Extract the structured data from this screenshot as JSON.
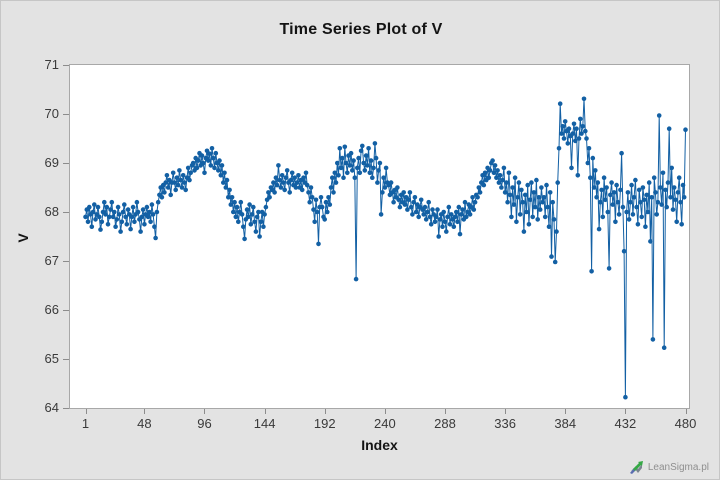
{
  "window": {
    "background": "#e3e3e3",
    "border": "#c6c6c6"
  },
  "watermark": {
    "label": "LeanSigma.pl",
    "text_color": "#8f8f8f",
    "arrow_green": "#35a845",
    "arrow_blue": "#5a6db0",
    "arrow_gray": "#7a8490"
  },
  "chart_data": {
    "type": "line",
    "title": "Time Series Plot of V",
    "xlabel": "Index",
    "ylabel": "V",
    "marker": "circle",
    "grid": false,
    "legend": "none",
    "accent_color": "#1360a4",
    "plot_background": "#ffffff",
    "plot_border_color": "#a8a8a8",
    "xlim": [
      1,
      480
    ],
    "ylim": [
      64,
      71
    ],
    "x_ticks": [
      1,
      48,
      96,
      144,
      192,
      240,
      288,
      336,
      384,
      432,
      480
    ],
    "y_ticks": [
      71,
      70,
      69,
      68,
      67,
      66,
      65,
      64
    ],
    "series": [
      {
        "name": "V",
        "x_start": 1,
        "x_step": 1,
        "values": [
          67.9,
          68.05,
          67.8,
          68.1,
          67.95,
          67.7,
          68.0,
          68.15,
          67.85,
          67.95,
          68.1,
          67.9,
          67.64,
          67.8,
          68.0,
          68.2,
          67.95,
          68.1,
          67.75,
          67.9,
          68.05,
          68.2,
          67.9,
          68.0,
          67.7,
          67.85,
          68.1,
          67.95,
          67.6,
          67.8,
          68.0,
          68.15,
          67.9,
          67.75,
          68.05,
          67.95,
          67.65,
          67.9,
          68.1,
          67.8,
          67.95,
          68.2,
          68.0,
          67.85,
          67.6,
          67.9,
          68.05,
          67.75,
          67.95,
          68.1,
          67.9,
          68.0,
          67.8,
          68.15,
          67.95,
          67.7,
          67.47,
          68.0,
          68.2,
          68.35,
          68.5,
          68.3,
          68.55,
          68.4,
          68.6,
          68.75,
          68.5,
          68.65,
          68.35,
          68.6,
          68.8,
          68.6,
          68.45,
          68.7,
          68.55,
          68.85,
          68.65,
          68.5,
          68.75,
          68.6,
          68.45,
          68.7,
          68.9,
          68.65,
          68.8,
          68.95,
          69.0,
          68.85,
          69.1,
          68.9,
          69.05,
          69.2,
          68.95,
          69.15,
          69.0,
          68.8,
          69.1,
          69.25,
          69.05,
          69.19,
          68.95,
          69.3,
          69.1,
          68.9,
          69.2,
          69.0,
          68.85,
          69.05,
          68.75,
          68.95,
          68.6,
          68.8,
          68.5,
          68.65,
          68.3,
          68.45,
          68.15,
          68.3,
          68.0,
          68.2,
          67.9,
          68.1,
          67.8,
          68.0,
          68.2,
          67.95,
          67.7,
          67.45,
          67.85,
          68.05,
          67.9,
          68.15,
          67.75,
          67.95,
          68.1,
          67.8,
          67.6,
          67.9,
          68.0,
          67.5,
          67.8,
          68.0,
          67.7,
          67.95,
          68.1,
          68.25,
          68.4,
          68.3,
          68.5,
          68.45,
          68.6,
          68.4,
          68.7,
          68.55,
          68.95,
          68.65,
          68.5,
          68.75,
          68.6,
          68.45,
          68.7,
          68.85,
          68.6,
          68.4,
          68.65,
          68.8,
          68.55,
          68.7,
          68.5,
          68.6,
          68.75,
          68.5,
          68.65,
          68.45,
          68.7,
          68.6,
          68.8,
          68.55,
          68.4,
          68.2,
          68.5,
          68.3,
          68.05,
          67.8,
          68.25,
          68.0,
          67.35,
          68.1,
          68.3,
          68.1,
          67.9,
          67.85,
          68.2,
          68.0,
          68.3,
          68.15,
          68.5,
          68.7,
          68.4,
          68.8,
          68.6,
          69.0,
          68.75,
          69.3,
          68.9,
          69.1,
          68.7,
          69.33,
          69.0,
          68.8,
          69.15,
          68.95,
          69.2,
          68.85,
          69.05,
          68.7,
          66.63,
          68.9,
          69.1,
          68.8,
          69.25,
          69.35,
          69.0,
          68.85,
          69.15,
          68.95,
          69.3,
          68.8,
          69.05,
          68.7,
          68.9,
          69.4,
          69.1,
          68.6,
          68.85,
          69.0,
          67.95,
          68.4,
          68.7,
          68.5,
          68.9,
          68.6,
          68.55,
          68.35,
          68.6,
          68.4,
          68.2,
          68.45,
          68.3,
          68.5,
          68.25,
          68.1,
          68.35,
          68.2,
          68.4,
          68.15,
          68.3,
          68.05,
          68.25,
          68.4,
          68.1,
          67.95,
          68.2,
          68.3,
          68.0,
          68.15,
          67.9,
          68.1,
          68.25,
          68.05,
          67.95,
          68.1,
          67.85,
          68.0,
          68.2,
          67.9,
          67.75,
          68.05,
          67.95,
          67.8,
          67.9,
          68.05,
          67.5,
          67.85,
          67.95,
          67.7,
          68.0,
          67.8,
          67.6,
          67.9,
          68.1,
          67.75,
          67.95,
          67.85,
          67.7,
          67.9,
          68.0,
          67.8,
          68.1,
          67.55,
          67.95,
          68.05,
          67.85,
          68.2,
          67.9,
          68.0,
          68.15,
          67.95,
          68.1,
          68.3,
          68.05,
          68.2,
          68.35,
          68.3,
          68.5,
          68.4,
          68.6,
          68.75,
          68.55,
          68.8,
          68.65,
          68.9,
          68.7,
          68.85,
          69.0,
          69.05,
          68.8,
          68.95,
          68.7,
          68.85,
          68.6,
          68.75,
          68.5,
          68.65,
          68.9,
          68.4,
          68.6,
          68.2,
          68.8,
          68.35,
          67.9,
          68.5,
          68.15,
          68.7,
          67.8,
          68.3,
          68.6,
          67.95,
          68.45,
          68.2,
          67.6,
          68.35,
          68.0,
          68.55,
          67.75,
          68.25,
          68.6,
          67.9,
          68.4,
          68.1,
          68.65,
          67.85,
          68.3,
          68.05,
          68.5,
          68.2,
          68.3,
          67.9,
          68.55,
          68.1,
          67.7,
          68.4,
          67.09,
          68.2,
          67.85,
          66.98,
          67.6,
          68.6,
          69.3,
          70.21,
          69.6,
          69.75,
          69.5,
          69.85,
          69.65,
          69.4,
          69.7,
          69.55,
          68.9,
          69.6,
          69.8,
          69.45,
          69.7,
          68.75,
          69.5,
          69.9,
          69.6,
          69.75,
          70.31,
          69.65,
          69.5,
          69.0,
          69.3,
          68.7,
          66.79,
          69.1,
          68.5,
          68.85,
          68.3,
          68.6,
          67.65,
          68.2,
          68.45,
          67.9,
          68.7,
          68.25,
          68.5,
          68.0,
          66.85,
          68.35,
          68.6,
          68.15,
          68.4,
          67.8,
          68.55,
          68.2,
          67.95,
          68.45,
          69.2,
          68.1,
          67.2,
          64.22,
          68.0,
          68.4,
          67.85,
          68.2,
          68.55,
          67.95,
          68.3,
          68.65,
          68.1,
          67.75,
          68.45,
          68.2,
          67.9,
          68.5,
          68.25,
          67.7,
          68.35,
          68.0,
          68.6,
          67.4,
          68.3,
          65.4,
          68.7,
          68.4,
          67.95,
          68.2,
          69.97,
          68.5,
          68.15,
          68.8,
          65.23,
          68.45,
          68.1,
          68.6,
          69.7,
          68.3,
          68.9,
          68.05,
          68.5,
          68.25,
          67.8,
          68.4,
          68.7,
          68.2,
          67.75,
          68.55,
          68.3,
          69.68
        ]
      }
    ]
  }
}
